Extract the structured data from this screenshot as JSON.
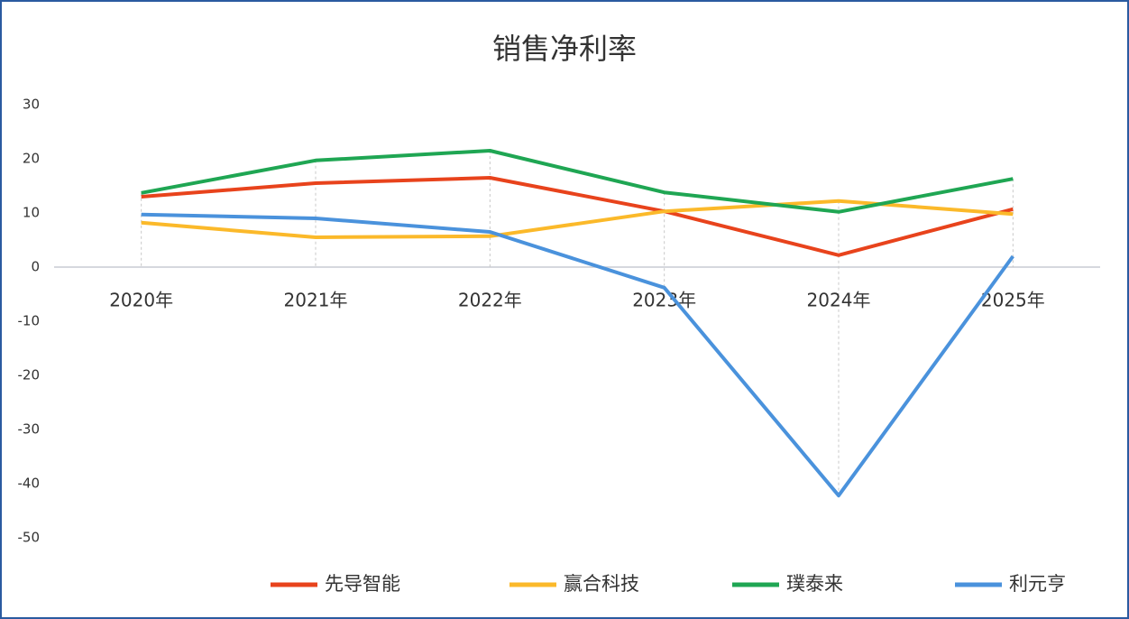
{
  "chart_data": {
    "type": "line",
    "title": "销售净利率",
    "categories": [
      "2020年",
      "2021年",
      "2022年",
      "2023年",
      "2024年",
      "2025年"
    ],
    "series": [
      {
        "name": "先导智能",
        "color": "#e8431c",
        "values": [
          13,
          15.5,
          16.5,
          10.3,
          2.2,
          10.7
        ]
      },
      {
        "name": "赢合科技",
        "color": "#fbb92a",
        "values": [
          8.2,
          5.5,
          5.7,
          10.3,
          12.2,
          9.8
        ]
      },
      {
        "name": "璞泰来",
        "color": "#1fa653",
        "values": [
          13.7,
          19.7,
          21.5,
          13.8,
          10.2,
          16.3
        ]
      },
      {
        "name": "利元亨",
        "color": "#4a92dc",
        "values": [
          9.7,
          9.0,
          6.5,
          -3.8,
          -42.2,
          2.0
        ]
      }
    ],
    "ylim": [
      -50,
      30
    ],
    "yticks": [
      -50,
      -40,
      -30,
      -20,
      -10,
      0,
      10,
      20,
      30
    ],
    "legend": "bottom"
  }
}
